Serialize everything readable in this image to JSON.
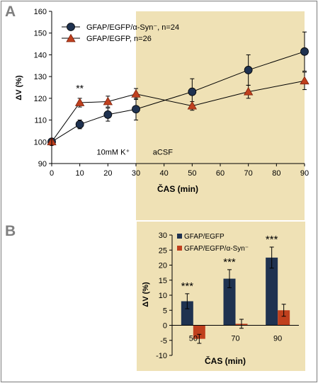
{
  "panels": {
    "a_label": "A",
    "b_label": "B"
  },
  "colors": {
    "frame": "#8c8c8c",
    "shade": "#efe1b5",
    "axis": "#000000",
    "navy": "#1f3250",
    "orange": "#c0401e",
    "triangle_edge": "#7a1f0a"
  },
  "chart_data": [
    {
      "type": "line",
      "panel": "A",
      "ylabel": "ΔV (%)",
      "xlabel": "ČAS (min)",
      "xlim": [
        0,
        90
      ],
      "ylim": [
        90,
        160
      ],
      "x_ticks": [
        0,
        10,
        20,
        30,
        40,
        50,
        60,
        70,
        80,
        90
      ],
      "y_ticks": [
        90,
        100,
        110,
        120,
        130,
        140,
        150,
        160
      ],
      "shaded_region": {
        "from": 30,
        "to": 90
      },
      "annotations": [
        {
          "text": "**",
          "x": 10,
          "y": 123
        },
        {
          "text": "10mM K⁺",
          "x": 16,
          "y": 94
        },
        {
          "text": "aCSF",
          "x": 36,
          "y": 94
        }
      ],
      "legend": "top-left",
      "series": [
        {
          "name": "GFAP/EGFP/α-Syn⁻, n=24",
          "marker": "circle",
          "color": "#1f3250",
          "x": [
            0,
            10,
            20,
            30,
            50,
            70,
            90
          ],
          "y": [
            100,
            108,
            112.5,
            115,
            123,
            133,
            141.5
          ],
          "err": [
            1,
            2,
            3,
            5,
            6,
            7,
            9
          ]
        },
        {
          "name": "GFAP/EGFP, n=26",
          "marker": "triangle",
          "color": "#c0401e",
          "x": [
            0,
            10,
            20,
            30,
            50,
            70,
            90
          ],
          "y": [
            100,
            118,
            118.5,
            122,
            116.5,
            123,
            128
          ],
          "err": [
            1,
            2,
            2.5,
            2.5,
            2,
            3,
            4
          ]
        }
      ]
    },
    {
      "type": "bar",
      "panel": "B",
      "ylabel": "ΔV (%)",
      "xlabel": "ČAS (min)",
      "categories": [
        "50",
        "70",
        "90"
      ],
      "ylim": [
        -10,
        30
      ],
      "y_ticks": [
        -10,
        -5,
        0,
        5,
        10,
        15,
        20,
        25,
        30
      ],
      "legend": "top-left",
      "significance": [
        "***",
        "***",
        "***"
      ],
      "series": [
        {
          "name": "GFAP/EGFP",
          "color": "#1f3250",
          "values": [
            8,
            15.5,
            22.5
          ],
          "err": [
            2.5,
            3,
            3.5
          ]
        },
        {
          "name": "GFAP/EGFP/α-Syn⁻",
          "color": "#c0401e",
          "values": [
            -4.5,
            0.5,
            5
          ],
          "err": [
            1.5,
            1.5,
            2
          ]
        }
      ]
    }
  ]
}
